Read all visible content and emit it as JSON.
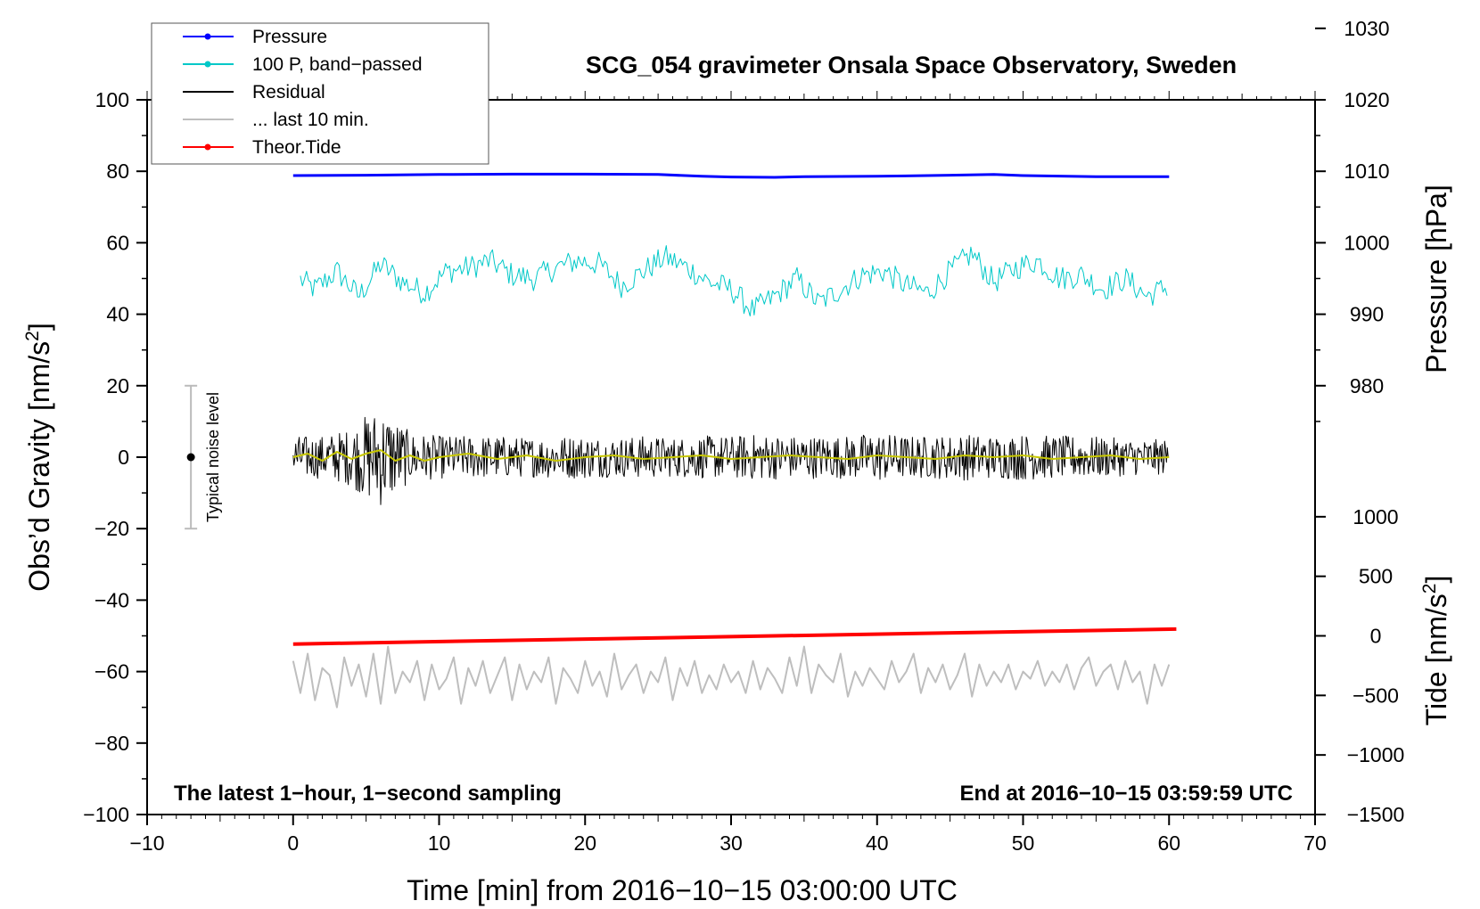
{
  "chart_data": {
    "type": "line",
    "title": "SCG_054 gravimeter Onsala Space Observatory, Sweden",
    "xlabel": "Time [min] from 2016−10−15 03:00:00 UTC",
    "ylabel": "Obs’d Gravity [nm/s",
    "ylabel_sup": "2",
    "ylabel_end": "]",
    "xlim": [
      -10,
      70
    ],
    "ylim": [
      -100,
      100
    ],
    "x_ticks": [
      -10,
      0,
      10,
      20,
      30,
      40,
      50,
      60,
      70
    ],
    "x_tick_labels": [
      "−10",
      "0",
      "10",
      "20",
      "30",
      "40",
      "50",
      "60",
      "70"
    ],
    "y_ticks": [
      -100,
      -80,
      -60,
      -40,
      -20,
      0,
      20,
      40,
      60,
      80,
      100
    ],
    "y_tick_labels": [
      "−100",
      "−80",
      "−60",
      "−40",
      "−20",
      "0",
      "20",
      "40",
      "60",
      "80",
      "100"
    ],
    "right_axis_pressure": {
      "label": "Pressure [hPa]",
      "ticks": [
        980,
        990,
        1000,
        1010,
        1020,
        1030
      ],
      "tick_labels": [
        "980",
        "990",
        "1000",
        "1010",
        "1020",
        "1030"
      ],
      "gravity_at_980": 20,
      "gravity_per_hpa": 2
    },
    "right_axis_tide": {
      "label": "Tide [nm/s",
      "label_sup": "2",
      "label_end": "]",
      "ticks": [
        -1500,
        -1000,
        -500,
        0,
        500,
        1000
      ],
      "tick_labels": [
        "−1500",
        "−1000",
        "−500",
        "0",
        "500",
        "1000"
      ],
      "gravity_at_0": -50,
      "gravity_per_unit": 0.03333
    },
    "legend": [
      {
        "label": "Pressure",
        "color": "#0000ff",
        "marker": true
      },
      {
        "label": "100 P, band−passed",
        "color": "#00c8c8",
        "marker": true
      },
      {
        "label": "Residual",
        "color": "#000000",
        "marker": false
      },
      {
        "label": "... last 10 min.",
        "color": "#bebebe",
        "marker": false
      },
      {
        "label": "Theor.Tide",
        "color": "#ff0000",
        "marker": true
      }
    ],
    "series": [
      {
        "name": "Pressure",
        "color": "#0000ff",
        "width": 3,
        "x": [
          0,
          5,
          10,
          15,
          20,
          25,
          28,
          30,
          33,
          35,
          40,
          45,
          48,
          50,
          55,
          60
        ],
        "y": [
          78.8,
          78.9,
          79.1,
          79.2,
          79.2,
          79.1,
          78.6,
          78.4,
          78.3,
          78.5,
          78.6,
          78.9,
          79.1,
          78.8,
          78.5,
          78.5
        ]
      },
      {
        "name": "100 P, band−passed",
        "color": "#00c8c8",
        "width": 1,
        "x": [
          0,
          1.5,
          3,
          4.5,
          6,
          7.5,
          9,
          10.5,
          12,
          13.5,
          15,
          16.5,
          18,
          19.5,
          21,
          22.5,
          24,
          25.5,
          27,
          28.5,
          30,
          31.5,
          33,
          34.5,
          36,
          37.5,
          39,
          40.5,
          42,
          43.5,
          45,
          46.5,
          48,
          49.5,
          51,
          52.5,
          54,
          55.5,
          57,
          58.5,
          60
        ],
        "y": [
          51,
          47,
          52,
          45,
          54,
          49,
          46,
          52,
          53,
          55,
          51,
          50,
          53,
          55,
          54,
          48,
          52,
          56,
          53,
          49,
          47,
          41,
          45,
          50,
          43,
          47,
          51,
          52,
          48,
          46,
          52,
          57,
          49,
          53,
          55,
          50,
          51,
          47,
          50,
          45,
          48
        ],
        "noise_amp": 3.5
      },
      {
        "name": "Residual",
        "color": "#000000",
        "width": 1,
        "x": [
          0,
          2,
          4,
          5,
          6,
          7,
          8,
          10,
          12,
          14,
          16,
          18,
          20,
          22,
          24,
          26,
          28,
          30,
          32,
          34,
          36,
          38,
          40,
          42,
          44,
          46,
          48,
          50,
          52,
          54,
          56,
          58,
          60
        ],
        "y_center": 0,
        "env": [
          6,
          6,
          8,
          12,
          14,
          11,
          7,
          6,
          6,
          6,
          5.5,
          6,
          6,
          5.5,
          6,
          5.5,
          6,
          6,
          6.5,
          6,
          6,
          6,
          7,
          6,
          6,
          6.5,
          6,
          6.5,
          6,
          6,
          5.5,
          5,
          5
        ]
      },
      {
        "name": "Residual (smoothed)",
        "color": "#c8c800",
        "width": 2,
        "x": [
          0,
          1,
          2,
          3,
          4,
          5,
          6,
          7,
          8,
          9,
          10,
          12,
          14,
          16,
          18,
          20,
          22,
          24,
          26,
          28,
          30,
          32,
          34,
          36,
          38,
          40,
          42,
          44,
          46,
          48,
          50,
          52,
          54,
          56,
          58,
          60
        ],
        "y": [
          0,
          1,
          -1,
          1.5,
          -0.5,
          1,
          2,
          -1,
          0.5,
          -1,
          0,
          1,
          -0.5,
          0.5,
          -1,
          0,
          0.5,
          -0.5,
          0,
          0.5,
          -0.5,
          0,
          0.5,
          0,
          -0.5,
          0.5,
          0,
          -0.5,
          0.5,
          0,
          0.5,
          -0.5,
          0,
          0.5,
          -0.5,
          0
        ]
      },
      {
        "name": "Theor.Tide",
        "color": "#ff0000",
        "width": 4,
        "x": [
          0,
          60.5
        ],
        "y": [
          -52.3,
          -48.1
        ]
      },
      {
        "name": "... last 10 min.",
        "color": "#bebebe",
        "width": 2,
        "x": [
          0,
          0.5,
          1,
          1.5,
          2,
          2.5,
          3,
          3.5,
          4,
          4.5,
          5,
          5.5,
          6,
          6.5,
          7,
          7.5,
          8,
          8.5,
          9,
          9.5,
          10,
          10.5,
          11,
          11.5,
          12,
          12.5,
          13,
          13.5,
          14,
          14.5,
          15,
          15.5,
          16,
          16.5,
          17,
          17.5,
          18,
          18.5,
          19,
          19.5,
          20,
          20.5,
          21,
          21.5,
          22,
          22.5,
          23,
          23.5,
          24,
          24.5,
          25,
          25.5,
          26,
          26.5,
          27,
          27.5,
          28,
          28.5,
          29,
          29.5,
          30,
          30.5,
          31,
          31.5,
          32,
          32.5,
          33,
          33.5,
          34,
          34.5,
          35,
          35.5,
          36,
          36.5,
          37,
          37.5,
          38,
          38.5,
          39,
          39.5,
          40,
          40.5,
          41,
          41.5,
          42,
          42.5,
          43,
          43.5,
          44,
          44.5,
          45,
          45.5,
          46,
          46.5,
          47,
          47.5,
          48,
          48.5,
          49,
          49.5,
          50,
          50.5,
          51,
          51.5,
          52,
          52.5,
          53,
          53.5,
          54,
          54.5,
          55,
          55.5,
          56,
          56.5,
          57,
          57.5,
          58,
          58.5,
          59,
          59.5,
          60
        ],
        "y": [
          -57,
          -66,
          -55,
          -68,
          -59,
          -61,
          -70,
          -56,
          -64,
          -58,
          -67,
          -55,
          -69,
          -53,
          -66,
          -60,
          -63,
          -57,
          -68,
          -58,
          -65,
          -62,
          -56,
          -69,
          -59,
          -64,
          -57,
          -66,
          -61,
          -56,
          -68,
          -58,
          -65,
          -60,
          -63,
          -56,
          -69,
          -59,
          -62,
          -66,
          -57,
          -64,
          -60,
          -67,
          -55,
          -65,
          -61,
          -58,
          -66,
          -60,
          -63,
          -56,
          -68,
          -59,
          -64,
          -57,
          -66,
          -61,
          -65,
          -58,
          -63,
          -60,
          -66,
          -57,
          -65,
          -59,
          -62,
          -66,
          -56,
          -64,
          -53,
          -66,
          -58,
          -61,
          -63,
          -55,
          -67,
          -60,
          -64,
          -59,
          -62,
          -65,
          -57,
          -63,
          -60,
          -55,
          -66,
          -59,
          -63,
          -58,
          -65,
          -61,
          -55,
          -67,
          -58,
          -64,
          -60,
          -63,
          -58,
          -65,
          -60,
          -62,
          -57,
          -64,
          -60,
          -63,
          -58,
          -65,
          -59,
          -56,
          -64,
          -60,
          -58,
          -65,
          -57,
          -63,
          -60,
          -69,
          -58,
          -64,
          -58
        ]
      }
    ],
    "noise_bar": {
      "label": "Typical noise level",
      "x": -7,
      "center": 0,
      "half_range": 20
    },
    "annotation_left": "The latest 1−hour, 1−second sampling",
    "annotation_right": "End at 2016−10−15 03:59:59 UTC",
    "grid": false,
    "legend_position": "top-left"
  }
}
